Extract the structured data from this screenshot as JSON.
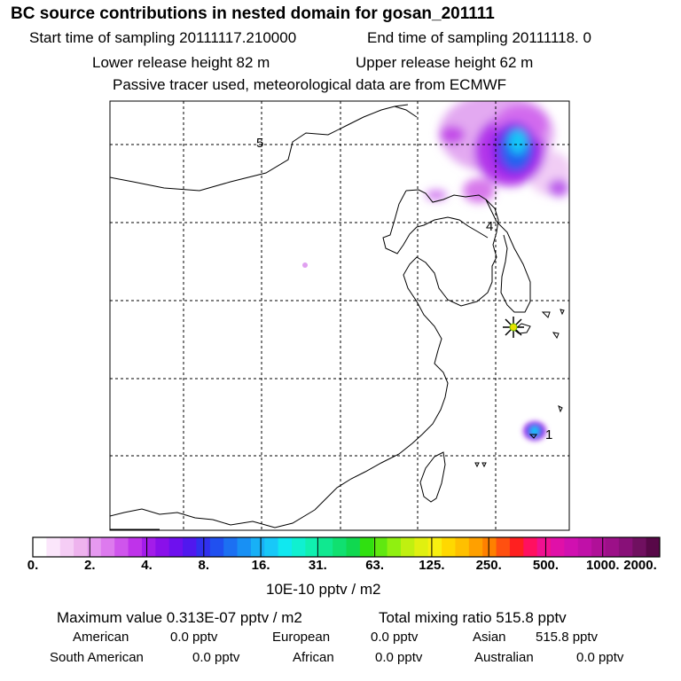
{
  "header": {
    "title": "BC  source contributions in nested domain for gosan_201111",
    "start_sampling": "Start time of sampling 20111117.210000",
    "end_sampling": "End time of sampling 20111118.     0",
    "lower_release": "Lower release height   82 m",
    "upper_release": "Upper release height   62 m",
    "tracer_note": "Passive tracer used, meteorological data are from ECMWF"
  },
  "map": {
    "trajectory_labels": [
      "5",
      "4",
      "1"
    ],
    "receptor": "gosan"
  },
  "colorbar": {
    "labels": [
      "0.",
      "2.",
      "4.",
      "8.",
      "16.",
      "31.",
      "63.",
      "125.",
      "250.",
      "500.",
      "1000.",
      "2000."
    ],
    "units": "10E-10 pptv / m2",
    "colors": [
      "#ffffff",
      "#fbe6fb",
      "#f5cdf5",
      "#eeb3ee",
      "#e699f0",
      "#dd7aee",
      "#cf55ec",
      "#bf33ea",
      "#a31cea",
      "#8a10ea",
      "#6e10ee",
      "#5018ee",
      "#3030ee",
      "#2050f0",
      "#1c70f2",
      "#1890f4",
      "#18b0f6",
      "#18c8f8",
      "#10e8f0",
      "#10f0d0",
      "#10f0b0",
      "#10e890",
      "#10e070",
      "#10d850",
      "#30e010",
      "#60e810",
      "#90f010",
      "#c0f010",
      "#e0f010",
      "#f8f010",
      "#ffd800",
      "#ffc000",
      "#ffa000",
      "#ff8000",
      "#ff5010",
      "#ff2020",
      "#ff1060",
      "#f01090",
      "#e010a8",
      "#d010b0",
      "#c010a8",
      "#b01098",
      "#9c1088",
      "#881078",
      "#701060",
      "#580848"
    ]
  },
  "stats": {
    "maximum": "Maximum value  0.313E-07 pptv / m2",
    "total": "Total mixing ratio     515.8 pptv",
    "regions": [
      {
        "name": "American",
        "value": "0.0 pptv"
      },
      {
        "name": "European",
        "value": "0.0 pptv"
      },
      {
        "name": "Asian",
        "value": "515.8 pptv"
      },
      {
        "name": "South American",
        "value": "0.0 pptv"
      },
      {
        "name": "African",
        "value": "0.0 pptv"
      },
      {
        "name": "Australian",
        "value": "0.0 pptv"
      }
    ]
  }
}
